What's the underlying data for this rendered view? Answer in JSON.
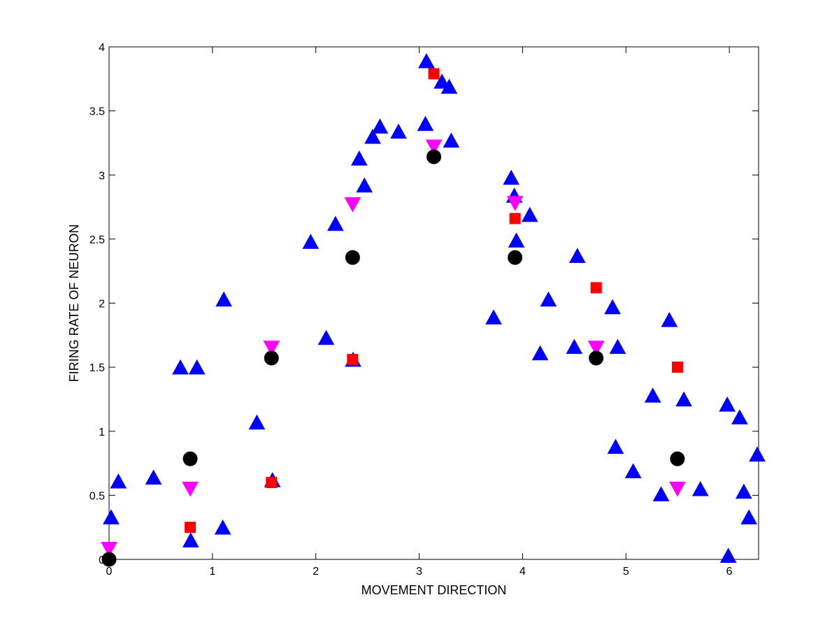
{
  "chart_data": {
    "type": "scatter",
    "title": "",
    "xlabel": "MOVEMENT DIRECTION",
    "ylabel": "FIRING RATE OF NEURON",
    "xlim": [
      0,
      6.2832
    ],
    "ylim": [
      0,
      4
    ],
    "xticks": [
      0,
      1,
      2,
      3,
      4,
      5,
      6
    ],
    "yticks": [
      0,
      0.5,
      1,
      1.5,
      2,
      2.5,
      3,
      3.5,
      4
    ],
    "ytick_labels": [
      "0",
      "0.5",
      "1",
      "1.5",
      "2",
      "2.5",
      "3",
      "3.5",
      "4"
    ],
    "grid": false,
    "legend": null,
    "series": [
      {
        "marker": "triangle-up",
        "color": "#0000ff",
        "points": [
          [
            0.02,
            0.32
          ],
          [
            0.09,
            0.6
          ],
          [
            0.43,
            0.63
          ],
          [
            0.69,
            1.49
          ],
          [
            0.85,
            1.49
          ],
          [
            0.79,
            0.14
          ],
          [
            1.1,
            0.24
          ],
          [
            1.11,
            2.02
          ],
          [
            1.43,
            1.06
          ],
          [
            1.58,
            0.61
          ],
          [
            1.95,
            2.47
          ],
          [
            2.1,
            1.72
          ],
          [
            2.19,
            2.61
          ],
          [
            2.36,
            1.55
          ],
          [
            2.42,
            3.12
          ],
          [
            2.47,
            2.91
          ],
          [
            2.55,
            3.29
          ],
          [
            2.62,
            3.37
          ],
          [
            2.8,
            3.33
          ],
          [
            3.06,
            3.39
          ],
          [
            3.07,
            3.88
          ],
          [
            3.22,
            3.72
          ],
          [
            3.29,
            3.68
          ],
          [
            3.31,
            3.26
          ],
          [
            3.72,
            1.88
          ],
          [
            3.89,
            2.97
          ],
          [
            3.92,
            2.83
          ],
          [
            3.94,
            2.48
          ],
          [
            4.07,
            2.68
          ],
          [
            4.17,
            1.6
          ],
          [
            4.25,
            2.02
          ],
          [
            4.5,
            1.65
          ],
          [
            4.53,
            2.36
          ],
          [
            4.87,
            1.96
          ],
          [
            4.9,
            0.87
          ],
          [
            4.92,
            1.65
          ],
          [
            5.07,
            0.68
          ],
          [
            5.26,
            1.27
          ],
          [
            5.34,
            0.5
          ],
          [
            5.42,
            1.86
          ],
          [
            5.56,
            1.24
          ],
          [
            5.72,
            0.54
          ],
          [
            5.99,
            0.02
          ],
          [
            5.98,
            1.2
          ],
          [
            6.1,
            1.1
          ],
          [
            6.14,
            0.52
          ],
          [
            6.19,
            0.32
          ],
          [
            6.27,
            0.81
          ]
        ]
      },
      {
        "marker": "square",
        "color": "#ff0000",
        "points": [
          [
            0.785,
            0.25
          ],
          [
            1.571,
            0.6
          ],
          [
            2.356,
            1.56
          ],
          [
            3.142,
            3.79
          ],
          [
            3.927,
            2.66
          ],
          [
            4.712,
            2.12
          ],
          [
            5.498,
            1.5
          ]
        ]
      },
      {
        "marker": "triangle-down",
        "color": "#ff00ff",
        "points": [
          [
            0.0,
            0.09
          ],
          [
            0.785,
            0.56
          ],
          [
            1.571,
            1.66
          ],
          [
            2.356,
            2.78
          ],
          [
            3.142,
            3.23
          ],
          [
            3.927,
            2.79
          ],
          [
            4.712,
            1.66
          ],
          [
            5.498,
            0.56
          ]
        ]
      },
      {
        "marker": "circle",
        "color": "#000000",
        "points": [
          [
            0.0,
            0.0
          ],
          [
            0.785,
            0.785
          ],
          [
            1.571,
            1.571
          ],
          [
            2.356,
            2.356
          ],
          [
            3.142,
            3.142
          ],
          [
            3.927,
            2.356
          ],
          [
            4.712,
            1.571
          ],
          [
            5.498,
            0.785
          ]
        ]
      }
    ]
  }
}
